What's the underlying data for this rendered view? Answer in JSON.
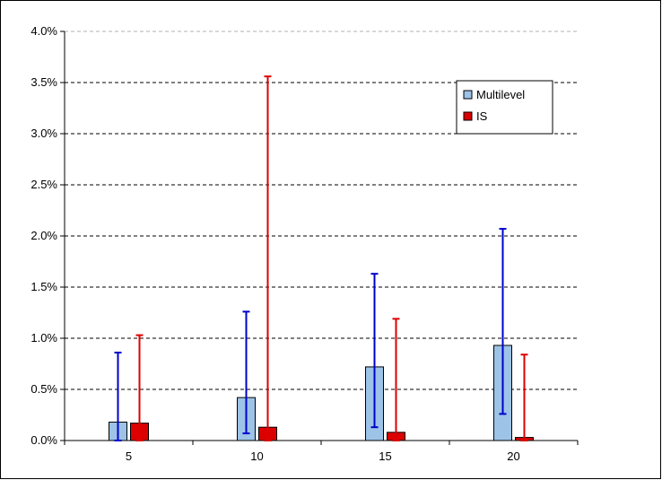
{
  "chart_data": {
    "type": "bar",
    "categories": [
      "5",
      "10",
      "15",
      "20"
    ],
    "series": [
      {
        "name": "Multilevel",
        "color": "#9DC3E6",
        "error_color": "#0000CC",
        "values": [
          0.18,
          0.42,
          0.72,
          0.93
        ],
        "error_low": [
          0.0,
          0.07,
          0.13,
          0.26
        ],
        "error_high": [
          0.86,
          1.26,
          1.63,
          2.07
        ]
      },
      {
        "name": "IS",
        "color": "#DD0000",
        "error_color": "#DD0000",
        "values": [
          0.17,
          0.13,
          0.08,
          0.03
        ],
        "error_low": [
          0.0,
          0.0,
          0.0,
          0.0
        ],
        "error_high": [
          1.03,
          3.56,
          1.19,
          0.84
        ]
      }
    ],
    "ylim": [
      0,
      4.0
    ],
    "yticks": [
      0.0,
      0.5,
      1.0,
      1.5,
      2.0,
      2.5,
      3.0,
      3.5,
      4.0
    ],
    "ytick_labels": [
      "0.0%",
      "0.5%",
      "1.0%",
      "1.5%",
      "2.0%",
      "2.5%",
      "3.0%",
      "3.5%",
      "4.0%"
    ],
    "grid": true,
    "legend_position": "top-right",
    "title": "",
    "xlabel": "",
    "ylabel": ""
  }
}
